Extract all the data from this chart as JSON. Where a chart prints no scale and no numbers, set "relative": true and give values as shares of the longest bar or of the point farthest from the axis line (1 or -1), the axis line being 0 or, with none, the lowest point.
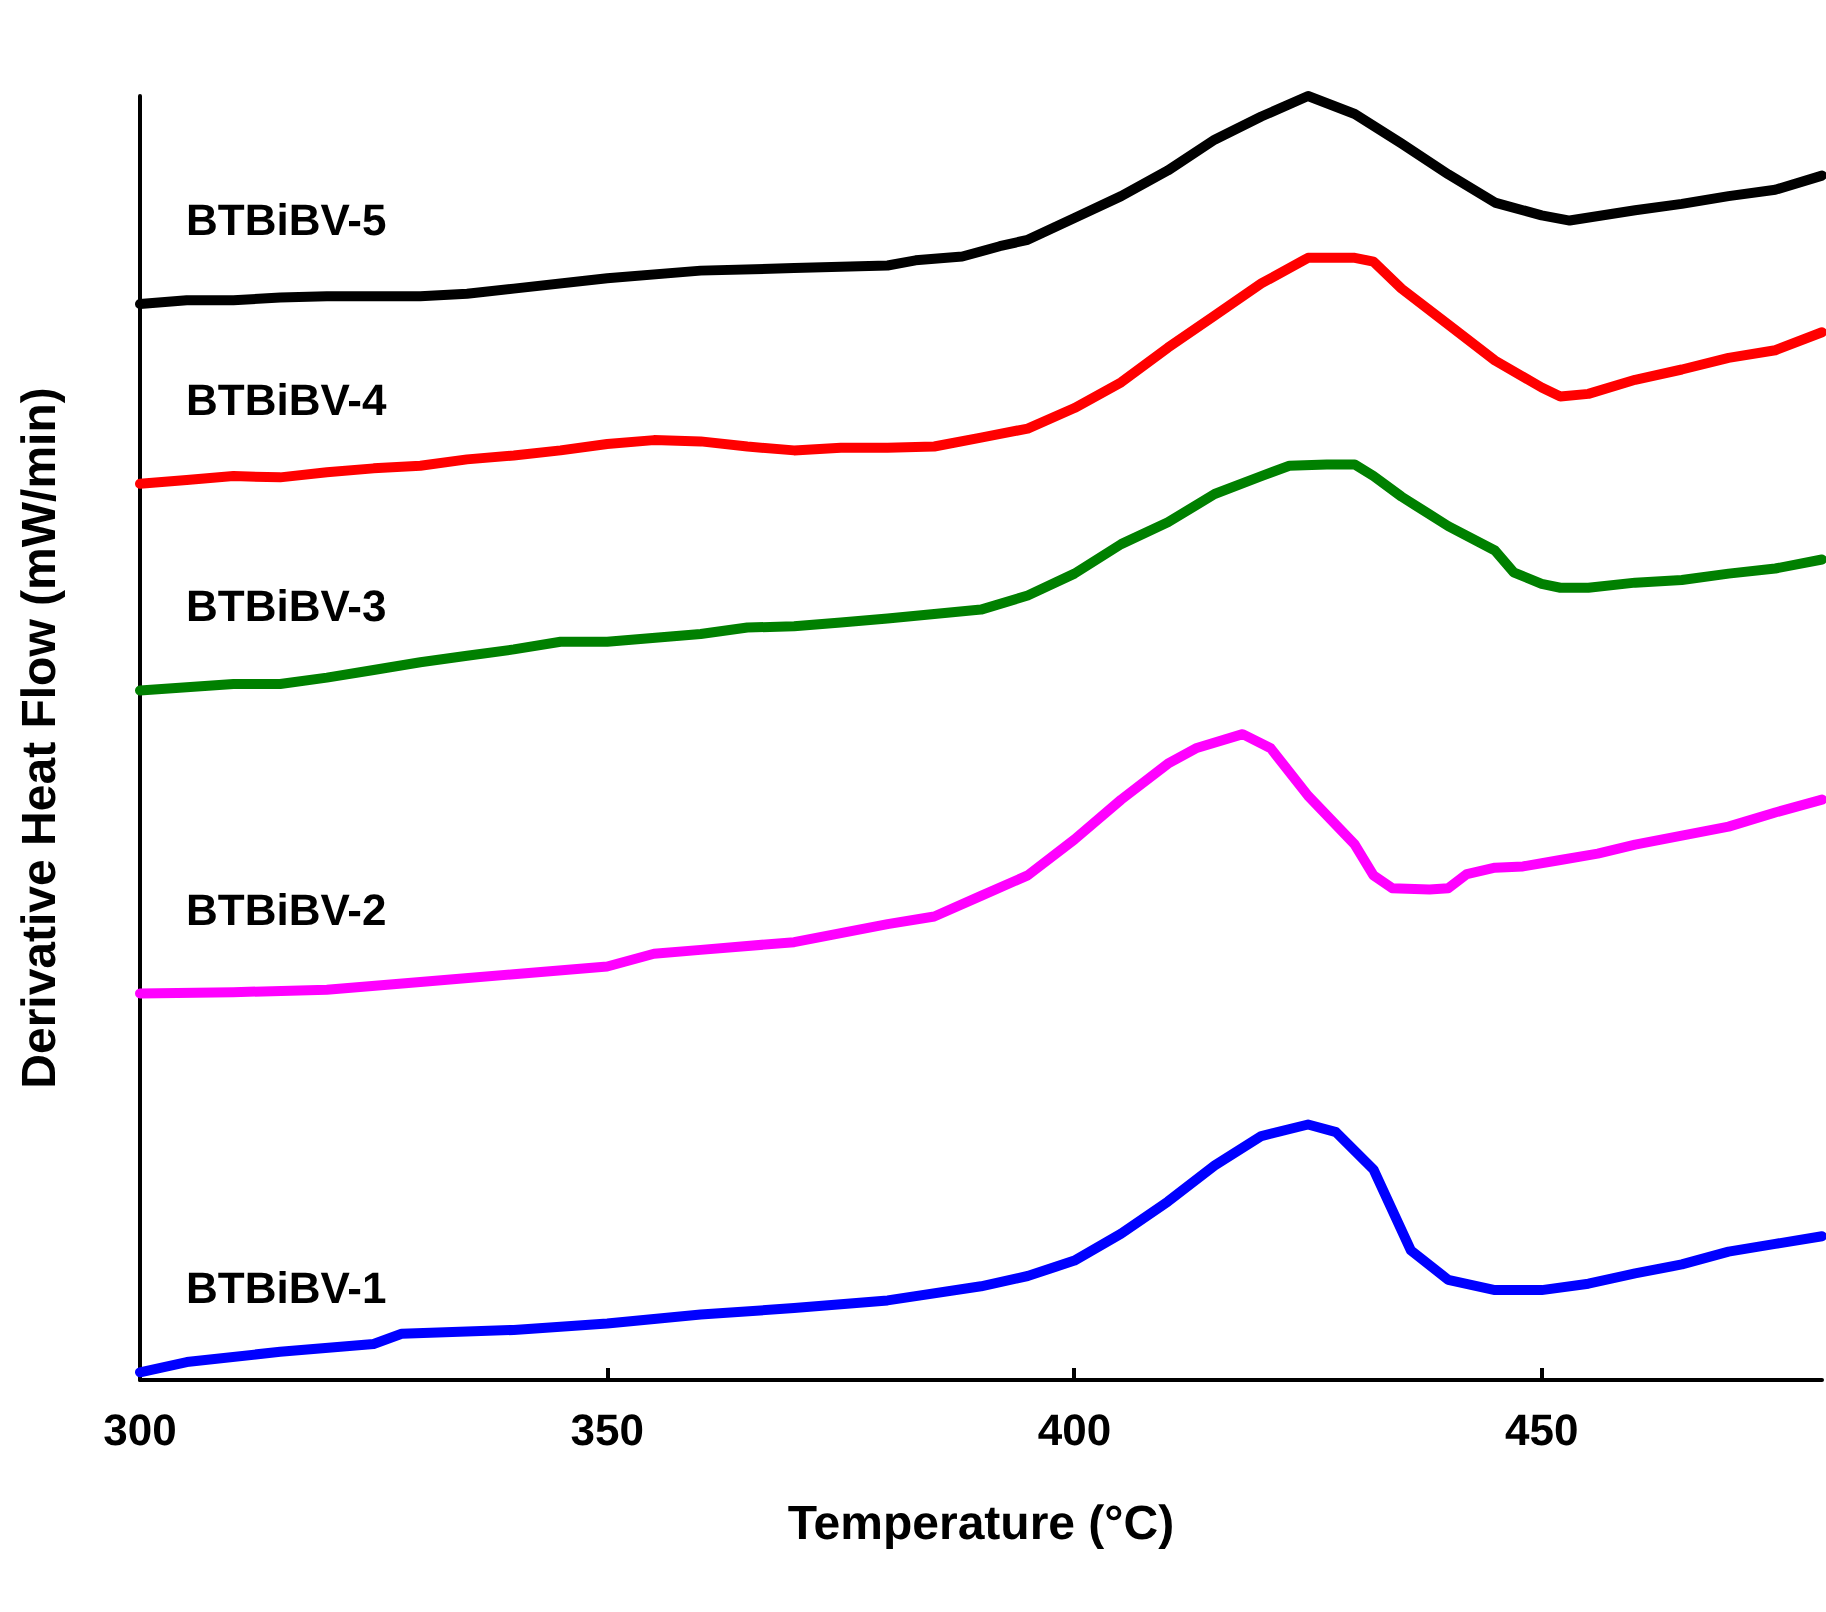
{
  "chart_data": {
    "type": "line",
    "relative": true,
    "xlabel": "Temperature (°C)",
    "ylabel": "Derivative Heat Flow (mW/min)",
    "xlim": [
      300,
      480
    ],
    "xticks": [
      300,
      350,
      400,
      450
    ],
    "grid": false,
    "legend": false,
    "marker": "none",
    "line_style": "solid",
    "series": [
      {
        "name": "BTBiBV-1",
        "color": "#0000ff",
        "x": [
          300,
          305,
          315,
          325,
          328,
          340,
          350,
          360,
          370,
          380,
          390,
          395,
          400,
          405,
          410,
          415,
          420,
          425,
          428,
          432,
          436,
          440,
          445,
          450,
          455,
          460,
          465,
          470,
          475,
          480
        ],
        "values": [
          0.006,
          0.014,
          0.022,
          0.028,
          0.036,
          0.039,
          0.044,
          0.051,
          0.056,
          0.062,
          0.073,
          0.081,
          0.093,
          0.114,
          0.139,
          0.167,
          0.19,
          0.199,
          0.193,
          0.164,
          0.101,
          0.078,
          0.07,
          0.07,
          0.075,
          0.083,
          0.09,
          0.1,
          0.106,
          0.112
        ]
      },
      {
        "name": "BTBiBV-2",
        "color": "#ff00ff",
        "x": [
          300,
          310,
          320,
          330,
          340,
          350,
          355,
          360,
          370,
          380,
          385,
          390,
          395,
          400,
          405,
          410,
          413,
          418,
          421,
          425,
          430,
          432,
          434,
          438,
          440,
          442,
          445,
          448,
          452,
          456,
          460,
          465,
          470,
          475,
          480
        ],
        "values": [
          0.301,
          0.302,
          0.304,
          0.31,
          0.316,
          0.322,
          0.332,
          0.335,
          0.341,
          0.355,
          0.361,
          0.377,
          0.393,
          0.421,
          0.452,
          0.48,
          0.492,
          0.503,
          0.492,
          0.455,
          0.417,
          0.393,
          0.383,
          0.382,
          0.383,
          0.394,
          0.399,
          0.4,
          0.405,
          0.41,
          0.417,
          0.424,
          0.431,
          0.442,
          0.452
        ]
      },
      {
        "name": "BTBiBV-3",
        "color": "#008000",
        "x": [
          300,
          310,
          315,
          320,
          325,
          330,
          335,
          340,
          345,
          350,
          360,
          365,
          370,
          375,
          380,
          390,
          395,
          400,
          405,
          410,
          415,
          420,
          423,
          427,
          430,
          432,
          435,
          440,
          445,
          447,
          450,
          452,
          455,
          460,
          465,
          470,
          475,
          480
        ],
        "values": [
          0.537,
          0.542,
          0.542,
          0.547,
          0.553,
          0.559,
          0.564,
          0.569,
          0.575,
          0.575,
          0.581,
          0.586,
          0.587,
          0.59,
          0.593,
          0.6,
          0.611,
          0.628,
          0.651,
          0.668,
          0.69,
          0.704,
          0.712,
          0.713,
          0.713,
          0.704,
          0.688,
          0.665,
          0.646,
          0.629,
          0.62,
          0.617,
          0.617,
          0.621,
          0.623,
          0.628,
          0.632,
          0.639
        ]
      },
      {
        "name": "BTBiBV-4",
        "color": "#ff0000",
        "x": [
          300,
          305,
          310,
          315,
          320,
          325,
          330,
          335,
          340,
          345,
          350,
          355,
          360,
          365,
          370,
          375,
          380,
          385,
          390,
          395,
          400,
          405,
          410,
          415,
          420,
          425,
          430,
          432,
          435,
          440,
          445,
          450,
          452,
          455,
          460,
          465,
          470,
          475,
          480
        ],
        "values": [
          0.698,
          0.701,
          0.704,
          0.703,
          0.707,
          0.71,
          0.712,
          0.717,
          0.72,
          0.724,
          0.729,
          0.732,
          0.731,
          0.727,
          0.724,
          0.726,
          0.726,
          0.727,
          0.734,
          0.741,
          0.757,
          0.777,
          0.804,
          0.829,
          0.854,
          0.874,
          0.874,
          0.871,
          0.85,
          0.822,
          0.794,
          0.773,
          0.766,
          0.768,
          0.779,
          0.787,
          0.796,
          0.802,
          0.816
        ]
      },
      {
        "name": "BTBiBV-5",
        "color": "#000000",
        "x": [
          300,
          305,
          310,
          315,
          320,
          330,
          335,
          340,
          350,
          360,
          370,
          380,
          383,
          388,
          392,
          395,
          400,
          405,
          410,
          415,
          420,
          425,
          430,
          435,
          440,
          445,
          450,
          453,
          460,
          465,
          470,
          475,
          480
        ],
        "values": [
          0.838,
          0.841,
          0.841,
          0.843,
          0.844,
          0.844,
          0.846,
          0.85,
          0.858,
          0.864,
          0.866,
          0.868,
          0.872,
          0.875,
          0.883,
          0.888,
          0.905,
          0.922,
          0.942,
          0.966,
          0.984,
          1,
          0.986,
          0.963,
          0.939,
          0.917,
          0.907,
          0.903,
          0.911,
          0.916,
          0.922,
          0.927,
          0.938
        ]
      }
    ]
  }
}
